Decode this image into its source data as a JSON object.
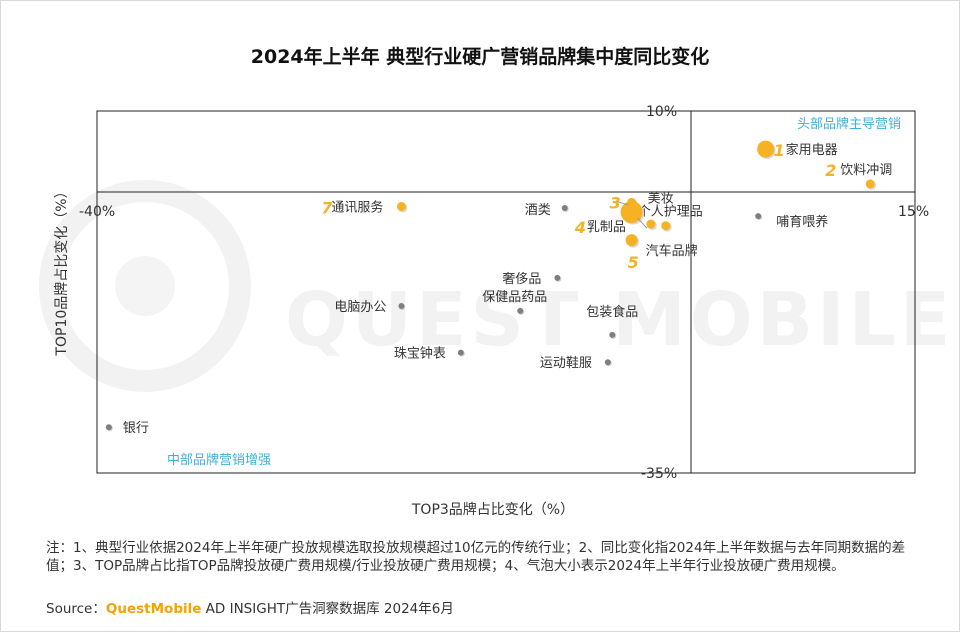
{
  "title": "2024年上半年 典型行业硬广营销品牌集中度同比变化",
  "chart_data": {
    "type": "scatter",
    "title": "2024年上半年 典型行业硬广营销品牌集中度同比变化",
    "xlabel": "TOP3品牌占比变化（%）",
    "ylabel": "TOP10品牌占比变化（%）",
    "xlim": [
      -40,
      15
    ],
    "ylim": [
      -35,
      10
    ],
    "x_tick_labels": [
      "-40%",
      "15%"
    ],
    "y_tick_labels": [
      "10%",
      "-35%"
    ],
    "quadrant_labels": {
      "top_right": "头部品牌主导营销",
      "bottom_left": "中部品牌营销增强"
    },
    "points": [
      {
        "label": "家用电器",
        "rank": "1",
        "x": 5.0,
        "y": 5.3,
        "size": 10
      },
      {
        "label": "饮料冲调",
        "rank": "2",
        "x": 12.0,
        "y": 1.0,
        "size": 5
      },
      {
        "label": "美妆",
        "rank": "3",
        "x": -4.0,
        "y": -1.3,
        "size": 4
      },
      {
        "label": "乳制品",
        "rank": "4",
        "x": -2.7,
        "y": -4.0,
        "size": 4
      },
      {
        "label": "汽车品牌",
        "rank": "5",
        "x": -4.0,
        "y": -6.0,
        "size": 6
      },
      {
        "label": "个人护理品",
        "rank": "6",
        "x": -1.7,
        "y": -4.2,
        "size": 5
      },
      {
        "label": "通讯服务",
        "rank": "7",
        "x": -19.5,
        "y": -1.8,
        "size": 4
      },
      {
        "label": "酒类",
        "rank": "",
        "x": -8.5,
        "y": -2.0,
        "size": 3
      },
      {
        "label": "大个气泡",
        "rank": "",
        "x": -4.0,
        "y": -2.5,
        "size": 12,
        "hidden_label": true
      },
      {
        "label": "哺育喂养",
        "rank": "",
        "x": 4.5,
        "y": -3.0,
        "size": 3
      },
      {
        "label": "奢侈品",
        "rank": "",
        "x": -9.0,
        "y": -10.7,
        "size": 3
      },
      {
        "label": "保健品药品",
        "rank": "",
        "x": -11.5,
        "y": -14.8,
        "size": 3
      },
      {
        "label": "包装食品",
        "rank": "",
        "x": -5.3,
        "y": -17.8,
        "size": 3
      },
      {
        "label": "电脑办公",
        "rank": "",
        "x": -19.5,
        "y": -14.2,
        "size": 3
      },
      {
        "label": "珠宝钟表",
        "rank": "",
        "x": -15.5,
        "y": -20.0,
        "size": 3
      },
      {
        "label": "运动鞋服",
        "rank": "",
        "x": -5.6,
        "y": -21.2,
        "size": 3
      },
      {
        "label": "银行",
        "rank": "",
        "x": -39.2,
        "y": -29.3,
        "size": 3
      }
    ]
  },
  "watermark": "QUEST MOBILE",
  "note": "注：1、典型行业依据2024年上半年硬广投放规模选取投放规模超过10亿元的传统行业；2、同比变化指2024年上半年数据与去年同期数据的差值；3、TOP品牌占比指TOP品牌投放硬广费用规模/行业投放硬广费用规模；4、气泡大小表示2024年上半年行业投放硬广费用规模。",
  "source": {
    "prefix": "Source：",
    "brand": "QuestMobile",
    "suffix": " AD INSIGHT广告洞察数据库 2024年6月"
  },
  "colors": {
    "highlight": "#f5b324",
    "gray_point": "#7f7f7f",
    "quadrant_label": "#3fb1d8",
    "axis": "#222222"
  }
}
